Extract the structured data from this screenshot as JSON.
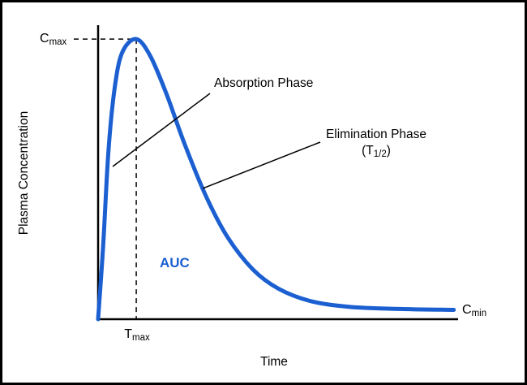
{
  "figure": {
    "ylabel": "Plasma Concentration",
    "xlabel": "Time",
    "labels": {
      "cmax_base": "C",
      "cmax_sub": "max",
      "tmax_base": "T",
      "tmax_sub": "max",
      "cmin_base": "C",
      "cmin_sub": "min",
      "auc": "AUC",
      "absorption": "Absorption Phase",
      "elimination": "Elimination Phase",
      "half_open": "(T",
      "half_sub": "1/2",
      "half_close": ")"
    },
    "colors": {
      "curve": "#1b5fd1",
      "axis": "#000000"
    }
  },
  "chart_data": {
    "type": "line",
    "title": "",
    "xlabel": "Time",
    "ylabel": "Plasma Concentration",
    "x_range": [
      0,
      1
    ],
    "y_range": [
      0,
      1
    ],
    "grid": false,
    "series": [
      {
        "name": "Plasma concentration vs time",
        "color": "#1b5fd1",
        "points": [
          [
            0.0,
            0.0
          ],
          [
            0.014,
            0.25
          ],
          [
            0.029,
            0.58
          ],
          [
            0.047,
            0.8
          ],
          [
            0.068,
            0.915
          ],
          [
            0.106,
            0.958
          ],
          [
            0.145,
            0.9
          ],
          [
            0.19,
            0.77
          ],
          [
            0.24,
            0.6
          ],
          [
            0.3,
            0.42
          ],
          [
            0.36,
            0.28
          ],
          [
            0.43,
            0.17
          ],
          [
            0.5,
            0.105
          ],
          [
            0.59,
            0.062
          ],
          [
            0.7,
            0.042
          ],
          [
            0.84,
            0.035
          ],
          [
            0.988,
            0.032
          ]
        ]
      }
    ],
    "peak": {
      "x": 0.106,
      "y": 0.958,
      "x_label": "Tmax",
      "y_label": "Cmax"
    },
    "terminal": {
      "y": 0.032,
      "label": "Cmin"
    },
    "x_ticks": [
      {
        "pos": 0.106,
        "label": "Tmax"
      }
    ],
    "y_ticks": [
      {
        "pos": 0.958,
        "label": "Cmax"
      }
    ],
    "annotations": [
      {
        "label": "Absorption Phase",
        "target": "rising limb of curve"
      },
      {
        "label": "Elimination Phase (T1/2)",
        "target": "declining limb of curve"
      },
      {
        "label": "AUC",
        "target": "area under the curve"
      }
    ]
  }
}
